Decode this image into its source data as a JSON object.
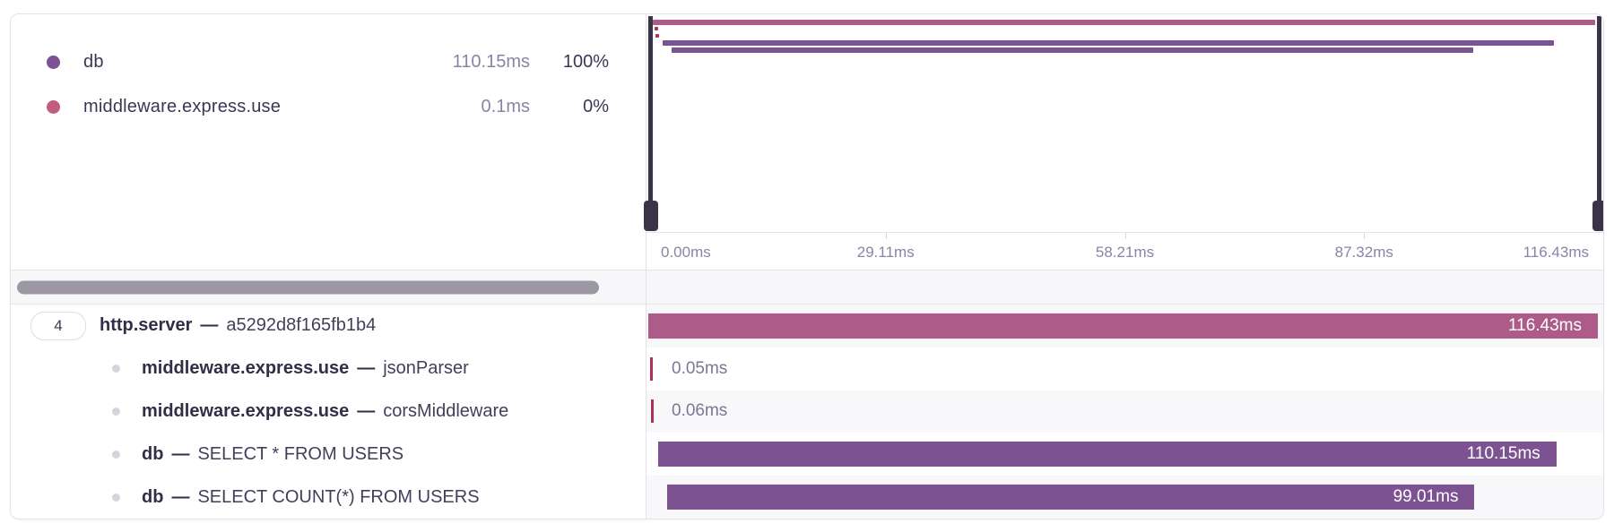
{
  "legend": {
    "items": [
      {
        "name": "db",
        "color": "#7c5295",
        "duration": "110.15ms",
        "percent": "100%"
      },
      {
        "name": "middleware.express.use",
        "color": "#c25c80",
        "duration": "0.1ms",
        "percent": "0%"
      }
    ]
  },
  "minimap": {
    "axis_labels": [
      "0.00ms",
      "29.11ms",
      "58.21ms",
      "87.32ms",
      "116.43ms"
    ]
  },
  "trace": {
    "total_ms": 116.43,
    "root_badge": "4",
    "separator": "—",
    "spans": [
      {
        "name": "http.server",
        "label": "a5292d8f165fb1b4",
        "duration_label": "116.43ms",
        "start_ms": 0,
        "duration_ms": 116.43,
        "render": "bar",
        "color": "#ad5c8a",
        "root": true
      },
      {
        "name": "middleware.express.use",
        "label": "jsonParser",
        "duration_label": "0.05ms",
        "start_ms": 0.2,
        "duration_ms": 0.05,
        "render": "tick",
        "color": "#ad3156"
      },
      {
        "name": "middleware.express.use",
        "label": "corsMiddleware",
        "duration_label": "0.06ms",
        "start_ms": 0.35,
        "duration_ms": 0.06,
        "render": "tick",
        "color": "#ad3156"
      },
      {
        "name": "db",
        "label": "SELECT * FROM USERS",
        "duration_label": "110.15ms",
        "start_ms": 1.2,
        "duration_ms": 110.15,
        "render": "bar",
        "color": "#7c5292"
      },
      {
        "name": "db",
        "label": "SELECT COUNT(*) FROM USERS",
        "duration_label": "99.01ms",
        "start_ms": 2.3,
        "duration_ms": 99.01,
        "render": "bar",
        "color": "#7c5292"
      }
    ]
  }
}
